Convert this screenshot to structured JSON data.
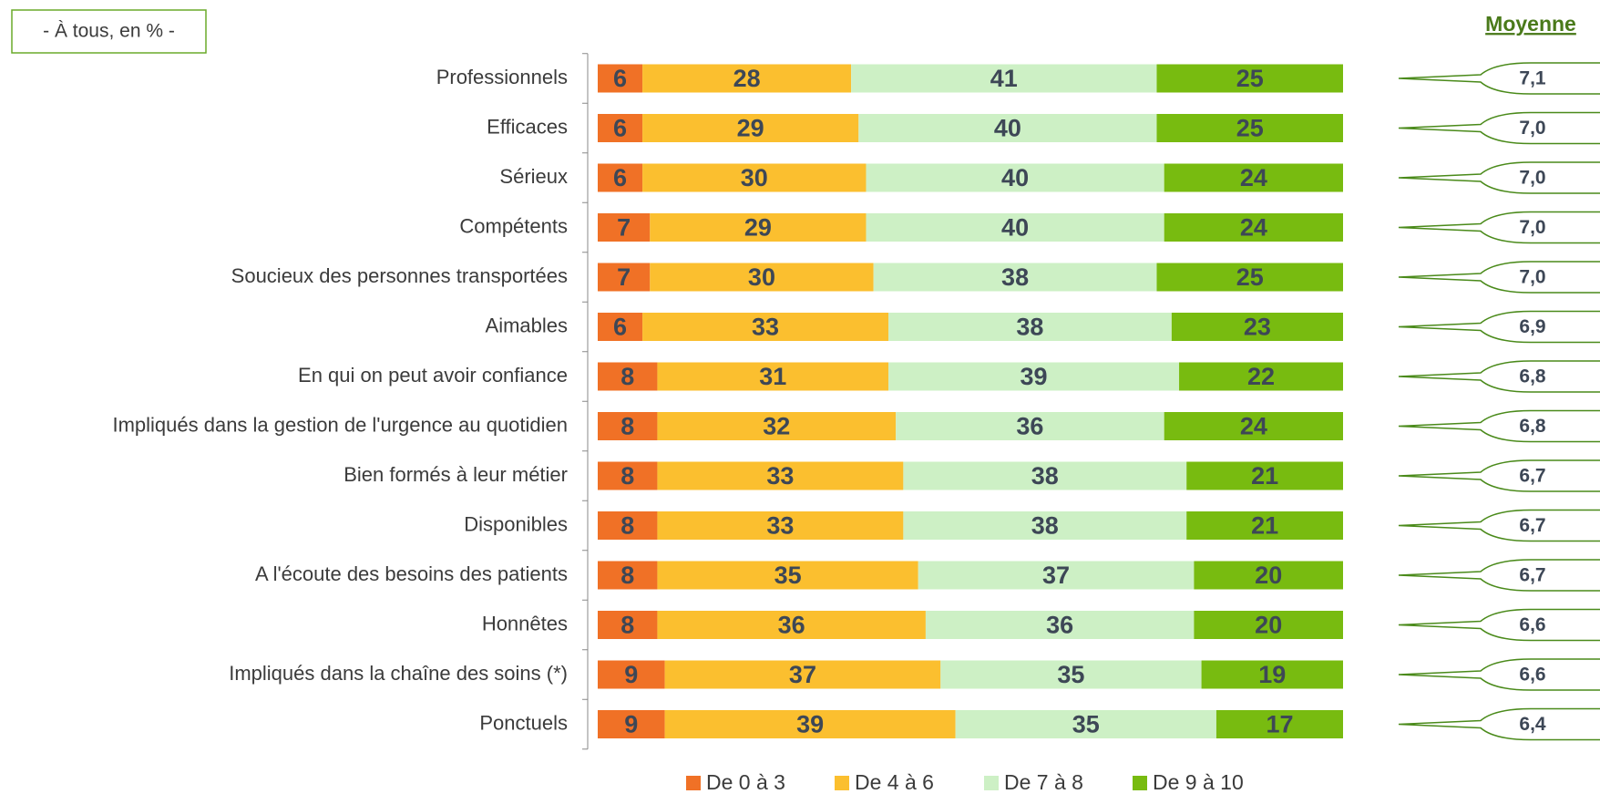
{
  "chart_data": {
    "type": "stacked-barh",
    "subtitle": "- À tous, en % -",
    "means_title": "Moyenne",
    "categories": [
      "Professionnels",
      "Efficaces",
      "Sérieux",
      "Compétents",
      "Soucieux des personnes transportées",
      "Aimables",
      "En qui on peut avoir confiance",
      "Impliqués dans la gestion de l'urgence au quotidien",
      "Bien formés à leur métier",
      "Disponibles",
      "A l'écoute des besoins des patients",
      "Honnêtes",
      "Impliqués dans la chaîne des soins (*)",
      "Ponctuels"
    ],
    "xlim": [
      0,
      100
    ],
    "series": [
      {
        "name": "De 0 à 3",
        "color": "#f07126",
        "values": [
          6,
          6,
          6,
          7,
          7,
          6,
          8,
          8,
          8,
          8,
          8,
          8,
          9,
          9
        ]
      },
      {
        "name": "De 4 à 6",
        "color": "#fbbf2f",
        "values": [
          28,
          29,
          30,
          29,
          30,
          33,
          31,
          32,
          33,
          33,
          35,
          36,
          37,
          39
        ]
      },
      {
        "name": "De 7 à 8",
        "color": "#cdf0c5",
        "values": [
          41,
          40,
          40,
          40,
          38,
          38,
          39,
          36,
          38,
          38,
          37,
          36,
          35,
          35
        ]
      },
      {
        "name": "De 9 à 10",
        "color": "#78bb10",
        "values": [
          25,
          25,
          24,
          24,
          25,
          23,
          22,
          24,
          21,
          21,
          20,
          20,
          19,
          17
        ]
      }
    ],
    "means": [
      7.1,
      7.0,
      7.0,
      7.0,
      7.0,
      6.9,
      6.8,
      6.8,
      6.7,
      6.7,
      6.7,
      6.6,
      6.6,
      6.4
    ],
    "mean_labels": [
      "7,1",
      "7,0",
      "7,0",
      "7,0",
      "7,0",
      "6,9",
      "6,8",
      "6,8",
      "6,7",
      "6,7",
      "6,7",
      "6,6",
      "6,6",
      "6,4"
    ]
  }
}
